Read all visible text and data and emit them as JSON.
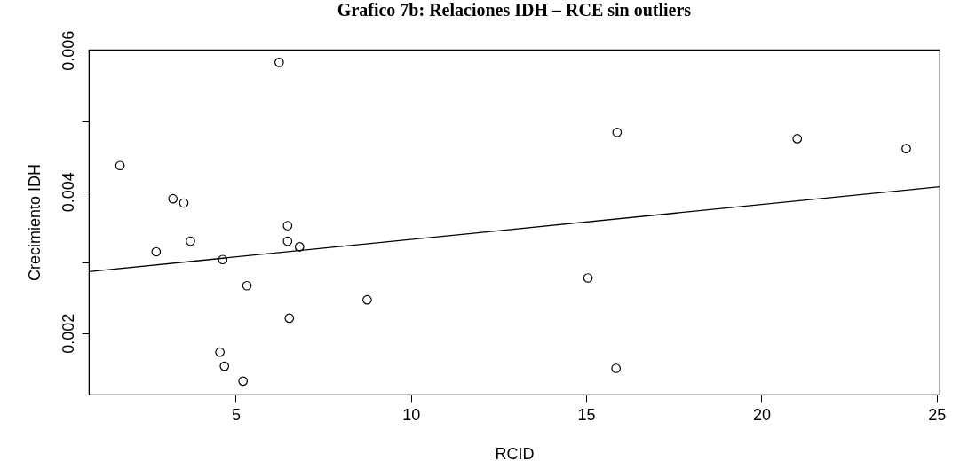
{
  "chart_data": {
    "type": "scatter",
    "title": "Grafico 7b: Relaciones IDH – RCE sin outliers",
    "xlabel": "RCID",
    "ylabel": "Crecimiento IDH",
    "xlim": [
      0.81,
      25.08
    ],
    "ylim": [
      0.00113,
      0.00601
    ],
    "xticks": [
      5,
      10,
      15,
      20,
      25
    ],
    "yticks": [
      0.002,
      {
        "value": 0.003,
        "label": null
      },
      0.004,
      {
        "value": 0.005,
        "label": null
      },
      0.006
    ],
    "grid": false,
    "marker": "circle",
    "series": [
      {
        "color": "#000000",
        "x": [
          1.7,
          2.73,
          3.21,
          3.52,
          3.71,
          4.55,
          4.63,
          4.68,
          5.21,
          5.32,
          6.24,
          6.48,
          6.48,
          6.53,
          6.82,
          8.75,
          15.05,
          15.85,
          15.88,
          21.02,
          24.13
        ],
        "values": [
          0.00437,
          0.00315,
          0.0039,
          0.00384,
          0.0033,
          0.00173,
          0.00304,
          0.00153,
          0.00132,
          0.00267,
          0.00583,
          0.00352,
          0.0033,
          0.00221,
          0.00322,
          0.00247,
          0.00278,
          0.0015,
          0.00484,
          0.00475,
          0.00461
        ]
      },
      {
        "type": "line",
        "color": "#000000",
        "marker": "none",
        "x": [
          0.81,
          25.08
        ],
        "values": [
          0.00287,
          0.00407
        ]
      }
    ]
  }
}
